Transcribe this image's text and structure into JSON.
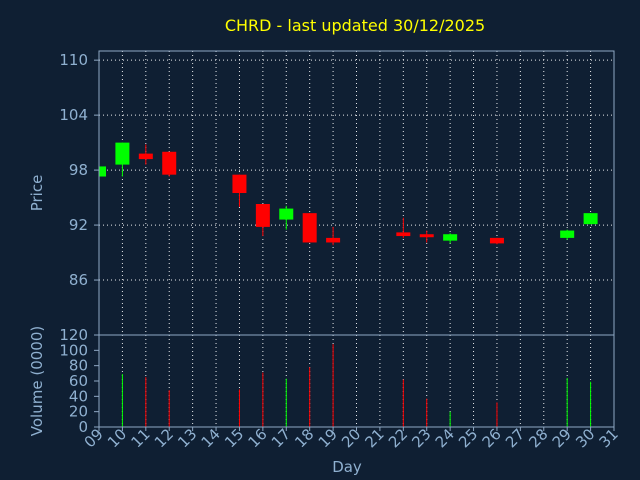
{
  "chart_data": {
    "type": "candlestick",
    "title": "CHRD - last updated 30/12/2025",
    "price_axis": {
      "label": "Price",
      "ylim": [
        80,
        111
      ],
      "ticks": [
        86,
        92,
        98,
        104,
        110
      ]
    },
    "volume_axis": {
      "label": "Volume (0000)",
      "ylim": [
        0,
        120
      ],
      "ticks": [
        0,
        20,
        40,
        60,
        80,
        100,
        120
      ]
    },
    "x_axis": {
      "label": "Day",
      "ticks": [
        "09",
        "10",
        "11",
        "12",
        "13",
        "14",
        "15",
        "16",
        "17",
        "18",
        "19",
        "20",
        "21",
        "22",
        "23",
        "24",
        "25",
        "26",
        "27",
        "28",
        "29",
        "30",
        "31"
      ]
    },
    "grid": true,
    "colors": {
      "up": "#00ff00",
      "down": "#ff0000",
      "background": "#0f1f33",
      "title": "#ffff00",
      "text": "#8fb0d0"
    },
    "candles": [
      {
        "day": "09",
        "open": 97.3,
        "high": 98.4,
        "low": 97.3,
        "close": 98.4
      },
      {
        "day": "10",
        "open": 98.6,
        "high": 101.0,
        "low": 97.3,
        "close": 101.0
      },
      {
        "day": "11",
        "open": 99.8,
        "high": 100.8,
        "low": 98.6,
        "close": 99.2
      },
      {
        "day": "12",
        "open": 100.0,
        "high": 100.0,
        "low": 97.3,
        "close": 97.5
      },
      {
        "day": "15",
        "open": 97.5,
        "high": 97.5,
        "low": 94.0,
        "close": 95.5
      },
      {
        "day": "16",
        "open": 94.3,
        "high": 94.3,
        "low": 90.8,
        "close": 91.8
      },
      {
        "day": "17",
        "open": 92.6,
        "high": 94.1,
        "low": 91.5,
        "close": 93.8
      },
      {
        "day": "18",
        "open": 93.3,
        "high": 93.3,
        "low": 90.1,
        "close": 90.1
      },
      {
        "day": "19",
        "open": 90.6,
        "high": 91.8,
        "low": 89.8,
        "close": 90.1
      },
      {
        "day": "22",
        "open": 91.2,
        "high": 92.8,
        "low": 90.6,
        "close": 90.8
      },
      {
        "day": "23",
        "open": 91.0,
        "high": 91.4,
        "low": 90.1,
        "close": 90.7
      },
      {
        "day": "24",
        "open": 90.3,
        "high": 91.1,
        "low": 90.0,
        "close": 91.0
      },
      {
        "day": "26",
        "open": 90.6,
        "high": 90.6,
        "low": 89.9,
        "close": 90.0
      },
      {
        "day": "29",
        "open": 90.6,
        "high": 91.5,
        "low": 90.4,
        "close": 91.4
      },
      {
        "day": "30",
        "open": 92.1,
        "high": 93.3,
        "low": 92.1,
        "close": 93.3
      }
    ],
    "volume": [
      {
        "day": "10",
        "value": 69,
        "direction": "up"
      },
      {
        "day": "11",
        "value": 65,
        "direction": "down"
      },
      {
        "day": "12",
        "value": 48,
        "direction": "down"
      },
      {
        "day": "15",
        "value": 49,
        "direction": "down"
      },
      {
        "day": "16",
        "value": 71,
        "direction": "down"
      },
      {
        "day": "17",
        "value": 63,
        "direction": "up"
      },
      {
        "day": "18",
        "value": 78,
        "direction": "down"
      },
      {
        "day": "19",
        "value": 108,
        "direction": "down"
      },
      {
        "day": "22",
        "value": 62,
        "direction": "down"
      },
      {
        "day": "23",
        "value": 37,
        "direction": "down"
      },
      {
        "day": "24",
        "value": 20,
        "direction": "up"
      },
      {
        "day": "26",
        "value": 32,
        "direction": "down"
      },
      {
        "day": "29",
        "value": 64,
        "direction": "up"
      },
      {
        "day": "30",
        "value": 59,
        "direction": "up"
      }
    ]
  }
}
